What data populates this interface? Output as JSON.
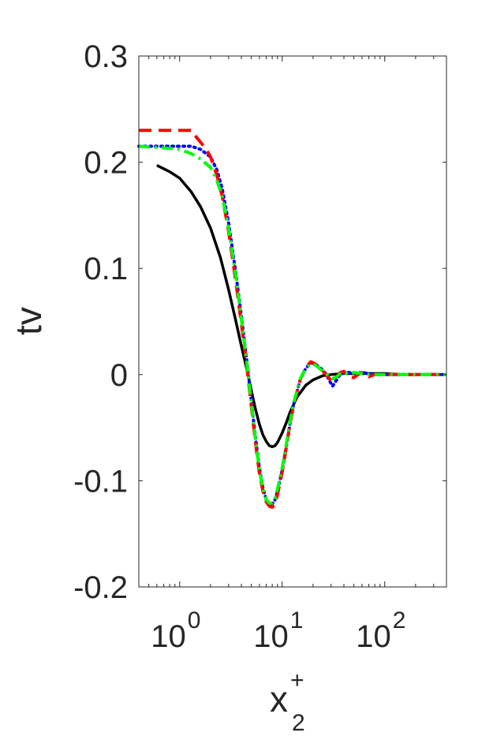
{
  "chart_data": {
    "type": "line",
    "xlabel": "x",
    "xlabel_subscript": "2",
    "xlabel_superscript": "+",
    "ylabel": "tv",
    "xscale": "log",
    "xlim": [
      0.4,
      400
    ],
    "ylim": [
      -0.2,
      0.3
    ],
    "xticks": [
      {
        "value": 1,
        "base": "10",
        "exp": "0"
      },
      {
        "value": 10,
        "base": "10",
        "exp": "1"
      },
      {
        "value": 100,
        "base": "10",
        "exp": "2"
      }
    ],
    "yticks": [
      {
        "value": 0.3,
        "label": "0.3"
      },
      {
        "value": 0.2,
        "label": "0.2"
      },
      {
        "value": 0.1,
        "label": "0.1"
      },
      {
        "value": 0,
        "label": "0"
      },
      {
        "value": -0.1,
        "label": "-0.1"
      },
      {
        "value": -0.2,
        "label": "-0.2"
      }
    ],
    "grid": false,
    "legend": "none",
    "series": [
      {
        "color": "#000000",
        "style": "solid",
        "x": [
          0.6,
          0.8,
          1.0,
          1.3,
          1.6,
          2.0,
          2.5,
          3.0,
          3.5,
          4.0,
          4.5,
          5.0,
          5.5,
          6.0,
          6.5,
          7.0,
          7.5,
          8.0,
          8.5,
          9.0,
          10,
          11,
          12,
          14,
          17,
          20,
          25,
          30,
          40,
          50,
          70,
          100,
          150,
          200,
          300,
          400
        ],
        "y": [
          0.197,
          0.191,
          0.185,
          0.172,
          0.158,
          0.138,
          0.11,
          0.08,
          0.052,
          0.027,
          0.006,
          -0.015,
          -0.033,
          -0.047,
          -0.057,
          -0.063,
          -0.067,
          -0.068,
          -0.067,
          -0.064,
          -0.055,
          -0.045,
          -0.035,
          -0.021,
          -0.01,
          -0.005,
          -0.001,
          0.0,
          0.001,
          0.001,
          0.001,
          0.001,
          0.0,
          0.0,
          0.0,
          0.0
        ]
      },
      {
        "color": "#0000ff",
        "style": "dotted",
        "x": [
          0.4,
          0.6,
          0.8,
          1.0,
          1.3,
          1.6,
          2.0,
          2.3,
          2.6,
          3.0,
          3.5,
          4.0,
          4.5,
          5.0,
          5.5,
          6.0,
          6.5,
          7.0,
          7.5,
          8.0,
          8.5,
          9.0,
          10,
          11,
          12,
          13,
          15,
          17,
          19,
          21,
          23,
          25,
          27,
          29,
          31,
          33,
          36,
          40,
          45,
          50,
          60,
          70,
          80,
          100,
          150,
          200,
          300,
          400
        ],
        "y": [
          0.215,
          0.215,
          0.215,
          0.215,
          0.215,
          0.212,
          0.205,
          0.193,
          0.175,
          0.143,
          0.098,
          0.055,
          0.015,
          -0.025,
          -0.06,
          -0.088,
          -0.107,
          -0.118,
          -0.122,
          -0.122,
          -0.118,
          -0.11,
          -0.09,
          -0.067,
          -0.045,
          -0.027,
          -0.005,
          0.006,
          0.011,
          0.01,
          0.007,
          0.004,
          0.0,
          -0.006,
          -0.011,
          -0.007,
          -0.001,
          0.002,
          0.002,
          0.001,
          0.002,
          0.001,
          0.0,
          0.0,
          0.0,
          0.0,
          0.0,
          0.0
        ]
      },
      {
        "color": "#ff0000",
        "style": "dashed",
        "x": [
          0.4,
          0.6,
          0.8,
          1.0,
          1.3,
          1.5,
          1.8,
          2.0,
          2.3,
          2.6,
          3.0,
          3.5,
          4.0,
          4.5,
          5.0,
          5.5,
          6.0,
          6.5,
          7.0,
          7.5,
          8.0,
          8.5,
          9.0,
          10,
          11,
          12,
          13,
          15,
          17,
          19,
          21,
          23,
          25,
          27,
          29,
          31,
          34,
          37,
          40,
          45,
          50,
          55,
          60,
          70,
          80,
          100,
          150,
          200,
          300,
          400
        ],
        "y": [
          0.23,
          0.23,
          0.23,
          0.23,
          0.23,
          0.222,
          0.213,
          0.205,
          0.188,
          0.168,
          0.135,
          0.09,
          0.048,
          0.01,
          -0.03,
          -0.065,
          -0.093,
          -0.11,
          -0.12,
          -0.124,
          -0.125,
          -0.122,
          -0.113,
          -0.092,
          -0.068,
          -0.045,
          -0.028,
          -0.005,
          0.007,
          0.012,
          0.01,
          0.006,
          0.003,
          0.0,
          -0.004,
          -0.006,
          -0.002,
          0.002,
          0.003,
          -0.002,
          -0.003,
          0.0,
          0.002,
          -0.002,
          0.0,
          0.0,
          0.0,
          0.0,
          0.0,
          0.0
        ]
      },
      {
        "color": "#00ff00",
        "style": "dashdot",
        "x": [
          0.4,
          0.6,
          0.8,
          1.0,
          1.3,
          1.6,
          2.0,
          2.3,
          2.6,
          3.0,
          3.5,
          4.0,
          4.5,
          5.0,
          5.5,
          6.0,
          6.5,
          7.0,
          7.5,
          8.0,
          8.5,
          9.0,
          10,
          11,
          12,
          13,
          15,
          17,
          19,
          21,
          23,
          25,
          27,
          29,
          31,
          34,
          37,
          40,
          45,
          50,
          60,
          70,
          80,
          100,
          150,
          200,
          300,
          400
        ],
        "y": [
          0.215,
          0.214,
          0.213,
          0.212,
          0.208,
          0.203,
          0.195,
          0.183,
          0.168,
          0.138,
          0.095,
          0.052,
          0.013,
          -0.027,
          -0.062,
          -0.09,
          -0.108,
          -0.118,
          -0.121,
          -0.121,
          -0.117,
          -0.108,
          -0.088,
          -0.065,
          -0.043,
          -0.026,
          -0.004,
          0.006,
          0.01,
          0.009,
          0.006,
          0.003,
          0.001,
          -0.002,
          -0.004,
          -0.002,
          0.001,
          0.002,
          0.0,
          0.002,
          0.001,
          0.0,
          0.0,
          0.0,
          0.0,
          0.0,
          0.0,
          0.0
        ]
      }
    ]
  }
}
